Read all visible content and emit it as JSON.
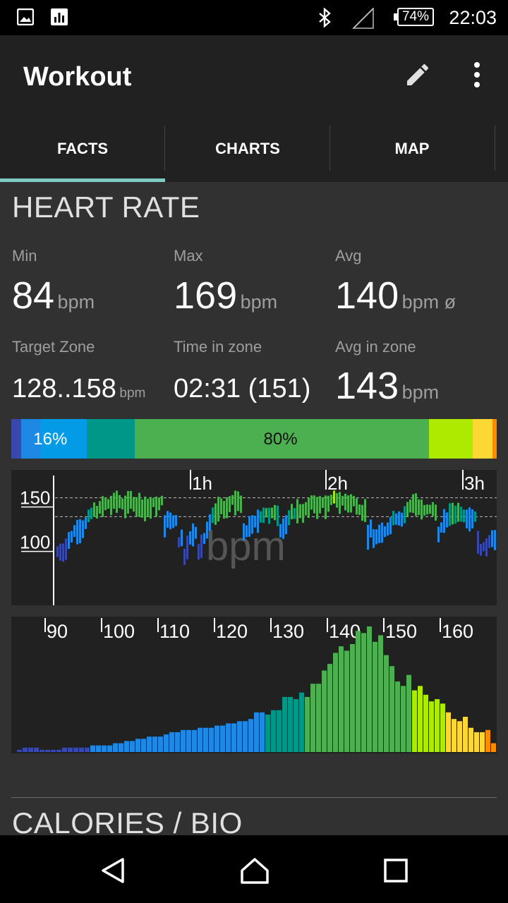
{
  "status_bar": {
    "time": "22:03",
    "battery": "74%"
  },
  "app_bar": {
    "title": "Workout"
  },
  "tabs": [
    {
      "label": "FACTS"
    },
    {
      "label": "CHARTS"
    },
    {
      "label": "MAP"
    }
  ],
  "heart_rate": {
    "title": "HEART RATE",
    "min": {
      "label": "Min",
      "value": "84",
      "unit": "bpm"
    },
    "max": {
      "label": "Max",
      "value": "169",
      "unit": "bpm"
    },
    "avg": {
      "label": "Avg",
      "value": "140",
      "unit": "bpm ø"
    },
    "target_zone": {
      "label": "Target Zone",
      "value": "128..158",
      "unit": "bpm"
    },
    "time_in_zone": {
      "label": "Time in zone",
      "value": "02:31 (151)"
    },
    "avg_in_zone": {
      "label": "Avg in zone",
      "value": "143",
      "unit": "bpm"
    }
  },
  "zone_distribution": {
    "segments": [
      {
        "color": "#3949ab",
        "fraction": 0.02,
        "label": ""
      },
      {
        "color": "#1e88e5",
        "fraction": 0.04,
        "label": ""
      },
      {
        "color": "#039be5",
        "fraction": 0.095,
        "label": "16%"
      },
      {
        "color": "#009688",
        "fraction": 0.1,
        "label": ""
      },
      {
        "color": "#4caf50",
        "fraction": 0.605,
        "label": "80%"
      },
      {
        "color": "#aeea00",
        "fraction": 0.09,
        "label": ""
      },
      {
        "color": "#fdd835",
        "fraction": 0.042,
        "label": ""
      },
      {
        "color": "#fb8c00",
        "fraction": 0.008,
        "label": ""
      }
    ]
  },
  "chart_data": [
    {
      "type": "bar",
      "watermark": "bpm",
      "y_ticks": [
        "150",
        "100"
      ],
      "x_ticks": [
        "1h",
        "2h",
        "3h"
      ]
    },
    {
      "type": "bar",
      "x_ticks": [
        "90",
        "100",
        "110",
        "120",
        "130",
        "140",
        "150",
        "160"
      ],
      "values": [
        1,
        2,
        2,
        2,
        1,
        1,
        1,
        1,
        2,
        2,
        2,
        2,
        2,
        3,
        3,
        3,
        3,
        4,
        4,
        5,
        5,
        6,
        6,
        7,
        7,
        7,
        8,
        9,
        9,
        10,
        10,
        10,
        11,
        11,
        11,
        12,
        12,
        13,
        13,
        14,
        14,
        15,
        18,
        18,
        17,
        19,
        19,
        25,
        25,
        24,
        27,
        25,
        31,
        31,
        37,
        40,
        45,
        48,
        46,
        49,
        55,
        54,
        57,
        50,
        53,
        44,
        39,
        32,
        30,
        35,
        28,
        30,
        26,
        23,
        24,
        22,
        18,
        15,
        14,
        16,
        11,
        9,
        9,
        10,
        4,
        3,
        2,
        2,
        3,
        3
      ]
    }
  ],
  "next_section": {
    "title": "CALORIES / BIO"
  }
}
